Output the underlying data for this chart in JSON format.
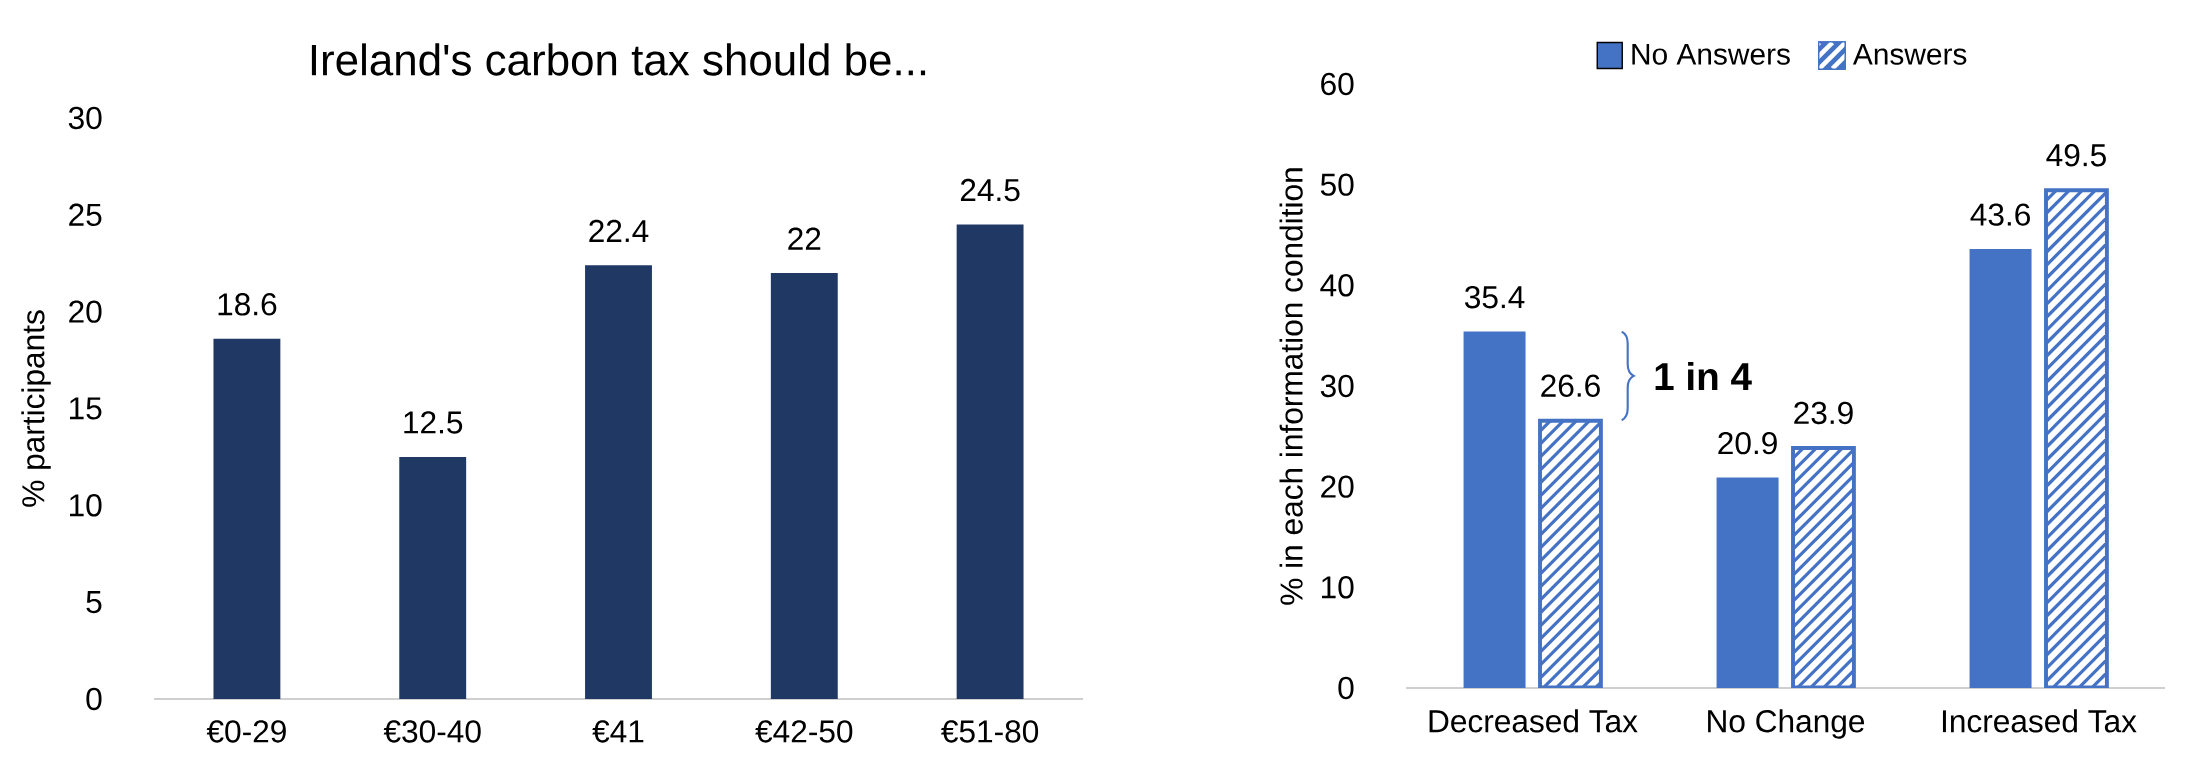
{
  "chart_data": [
    {
      "type": "bar",
      "title": "Ireland's carbon tax should be...",
      "ylabel": "% participants",
      "categories": [
        "€0-29",
        "€30-40",
        "€41",
        "€42-50",
        "€51-80"
      ],
      "values": [
        18.6,
        12.5,
        22.4,
        22,
        24.5
      ],
      "color": "#1f3864",
      "ylim": [
        0,
        30
      ],
      "yticks": [
        0,
        5,
        10,
        15,
        20,
        25,
        30
      ],
      "data_labels": true,
      "grid": false,
      "legend": false
    },
    {
      "type": "bar",
      "ylabel": "% in each information condition",
      "categories": [
        "Decreased Tax",
        "No Change",
        "Increased Tax"
      ],
      "series": [
        {
          "name": "No Answers",
          "color": "#4472c4",
          "values": [
            35.4,
            20.9,
            43.6
          ]
        },
        {
          "name": "Answers",
          "color": "#4472c4",
          "values": [
            26.6,
            23.9,
            49.5
          ]
        }
      ],
      "ylim": [
        0,
        60
      ],
      "yticks": [
        0,
        10,
        20,
        30,
        40,
        50,
        60
      ],
      "data_labels": true,
      "grid": false,
      "legend": "top",
      "annotations": [
        "1 in 4"
      ]
    }
  ]
}
